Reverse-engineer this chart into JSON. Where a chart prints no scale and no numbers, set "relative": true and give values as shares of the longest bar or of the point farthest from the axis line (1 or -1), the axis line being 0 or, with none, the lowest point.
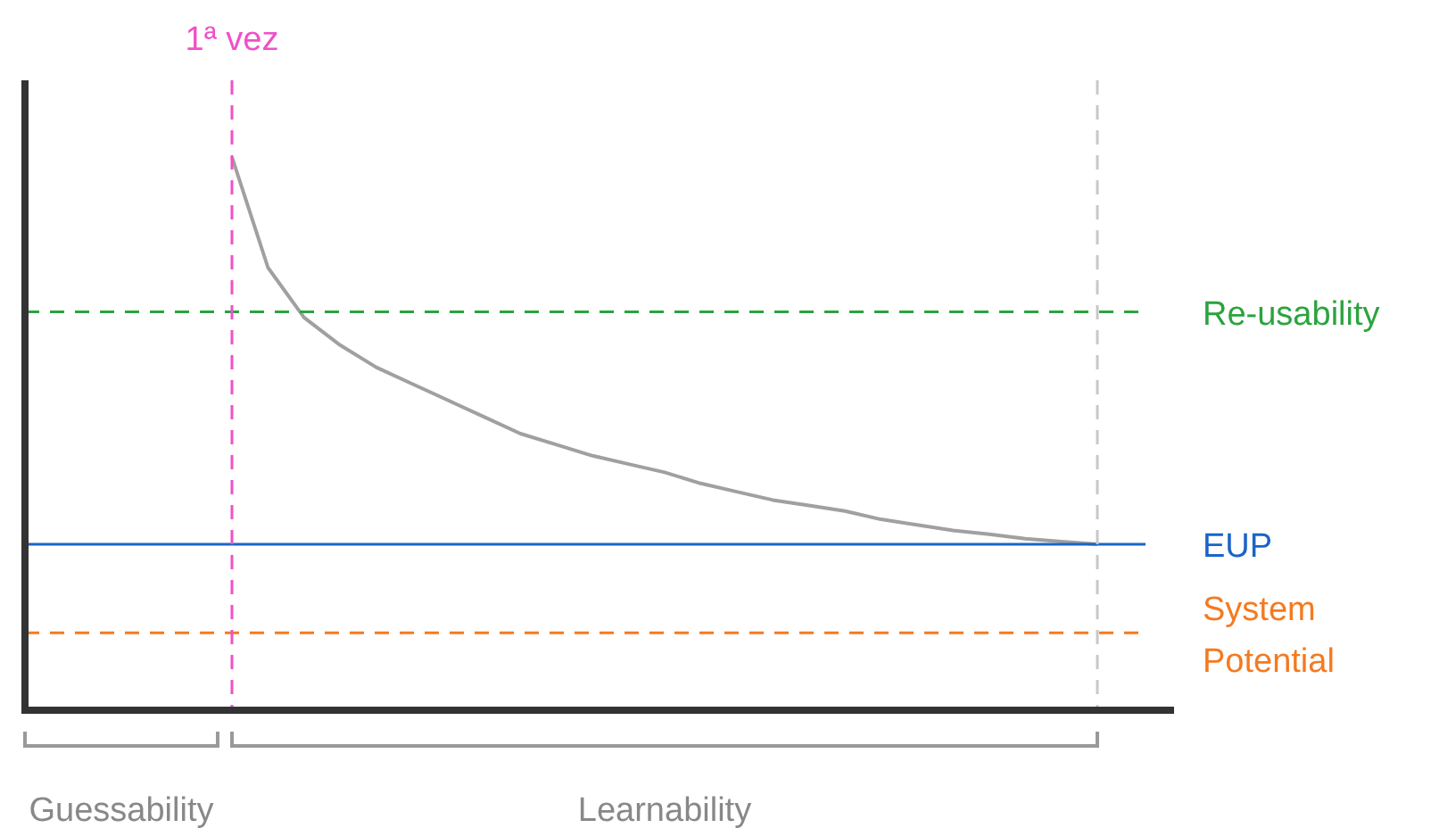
{
  "chart_data": {
    "type": "line",
    "relative": true,
    "marker": "none",
    "line_style": "solid",
    "categories": [
      null,
      null,
      null,
      null,
      null,
      null,
      null,
      null,
      null,
      null,
      null,
      null,
      null,
      null,
      null,
      null,
      null,
      null,
      null,
      null,
      null,
      null,
      null,
      null,
      null
    ],
    "series": [
      {
        "color": "#a0a0a0",
        "values": [
          1,
          0.8,
          0.71,
          0.66,
          0.62,
          0.59,
          0.56,
          0.53,
          0.5,
          0.48,
          0.46,
          0.445,
          0.43,
          0.41,
          0.395,
          0.38,
          0.37,
          0.36,
          0.345,
          0.335,
          0.325,
          0.318,
          0.31,
          0.305,
          0.3
        ]
      }
    ],
    "ref_lines": [
      {
        "axis": "y",
        "value": 0.72,
        "label": "Re-usability",
        "color": "#2ca340",
        "line_style": "dashed"
      },
      {
        "axis": "y",
        "value": 0.3,
        "label": "EUP",
        "color": "#1a64c8",
        "line_style": "solid"
      },
      {
        "axis": "y",
        "value": 0.14,
        "label": "System Potential",
        "color": "#f47a20",
        "line_style": "dashed"
      },
      {
        "axis": "x",
        "label": "1ª vez",
        "color": "#f050c8",
        "line_style": "dashed"
      },
      {
        "axis": "x",
        "color": "#c8c8c8",
        "line_style": "dashed"
      }
    ],
    "annotations": [
      "Guessability",
      "Learnability"
    ]
  }
}
